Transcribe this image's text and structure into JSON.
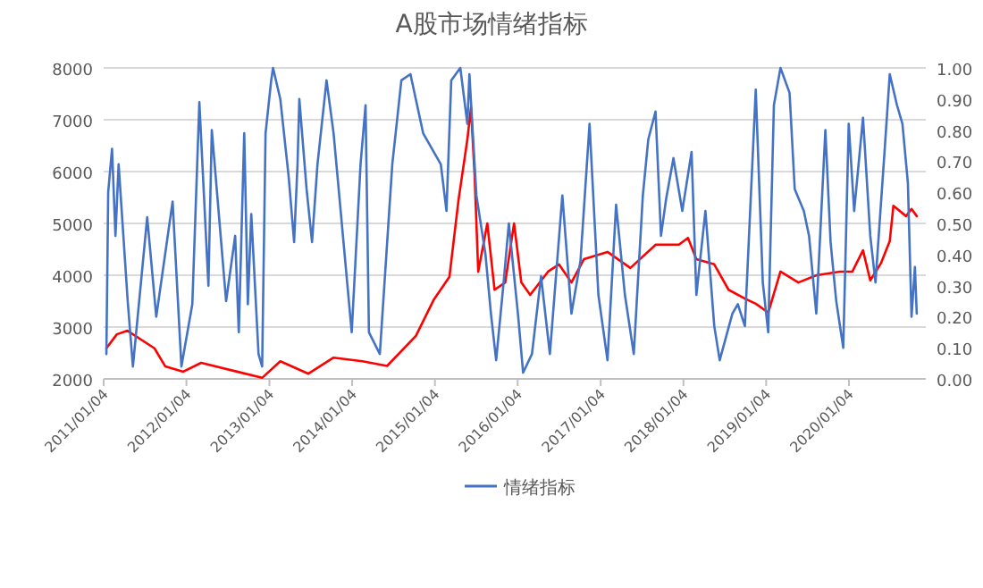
{
  "chart_data": {
    "type": "line",
    "title": "A股市场情绪指标",
    "xlim": [
      "2011-01-04",
      "2020-12-08"
    ],
    "xticks": [
      {
        "value": "2011-01-04",
        "label": "2011/01/04"
      },
      {
        "value": "2012-01-04",
        "label": "2012/01/04"
      },
      {
        "value": "2013-01-04",
        "label": "2013/01/04"
      },
      {
        "value": "2014-01-04",
        "label": "2014/01/04"
      },
      {
        "value": "2015-01-04",
        "label": "2015/01/04"
      },
      {
        "value": "2016-01-04",
        "label": "2016/01/04"
      },
      {
        "value": "2017-01-04",
        "label": "2017/01/04"
      },
      {
        "value": "2018-01-04",
        "label": "2018/01/04"
      },
      {
        "value": "2019-01-04",
        "label": "2019/01/04"
      },
      {
        "value": "2020-01-04",
        "label": "2020/01/04"
      }
    ],
    "ylim": [
      2000,
      8000
    ],
    "yticks": [
      2000,
      3000,
      4000,
      5000,
      6000,
      7000,
      8000
    ],
    "y2lim": [
      0,
      1
    ],
    "y2ticks": [
      {
        "value": 0,
        "label": "0.00"
      },
      {
        "value": 0.1,
        "label": "0.10"
      },
      {
        "value": 0.2,
        "label": "0.20"
      },
      {
        "value": 0.3,
        "label": "0.30"
      },
      {
        "value": 0.4,
        "label": "0.40"
      },
      {
        "value": 0.5,
        "label": "0.50"
      },
      {
        "value": 0.6,
        "label": "0.60"
      },
      {
        "value": 0.7,
        "label": "0.70"
      },
      {
        "value": 0.8,
        "label": "0.80"
      },
      {
        "value": 0.9,
        "label": "0.90"
      },
      {
        "value": 1,
        "label": "1.00"
      }
    ],
    "grid": "y",
    "legend": "bottom",
    "series": [
      {
        "color": "#ff0000",
        "x": [
          "2011-01-16",
          "2011-03-03",
          "2011-04-19",
          "2011-08-16",
          "2011-10-03",
          "2011-12-21",
          "2012-03-09",
          "2012-08-14",
          "2012-12-03",
          "2013-02-21",
          "2013-06-25",
          "2013-10-14",
          "2014-02-18",
          "2014-06-07",
          "2014-10-12",
          "2014-12-29",
          "2015-03-09",
          "2015-04-18",
          "2015-05-27",
          "2015-06-12",
          "2015-06-28",
          "2015-07-14",
          "2015-08-23",
          "2015-09-24",
          "2015-11-10",
          "2015-12-19",
          "2016-01-20",
          "2016-02-28",
          "2016-05-17",
          "2016-07-04",
          "2016-08-28",
          "2016-10-22",
          "2017-02-03",
          "2017-05-15",
          "2017-09-04",
          "2017-12-15",
          "2018-01-24",
          "2018-03-02",
          "2018-05-20",
          "2018-07-22",
          "2018-10-02",
          "2018-11-19",
          "2019-01-13",
          "2019-03-08",
          "2019-05-26",
          "2019-08-14",
          "2019-11-25",
          "2020-01-19",
          "2020-03-06",
          "2020-04-07",
          "2020-05-24",
          "2020-07-02",
          "2020-07-18",
          "2020-09-12",
          "2020-10-06",
          "2020-10-29"
        ],
        "values": [
          2590,
          2860,
          2930,
          2590,
          2240,
          2140,
          2310,
          2140,
          2020,
          2340,
          2100,
          2410,
          2340,
          2250,
          2830,
          3520,
          3970,
          5450,
          6620,
          7240,
          5930,
          4070,
          5000,
          3720,
          3860,
          5000,
          3860,
          3620,
          4070,
          4210,
          3860,
          4310,
          4450,
          4140,
          4590,
          4590,
          4720,
          4310,
          4210,
          3720,
          3550,
          3450,
          3280,
          4070,
          3860,
          4000,
          4070,
          4070,
          4480,
          3900,
          4230,
          4660,
          5340,
          5140,
          5280,
          5140
        ]
      },
      {
        "name": "情绪指标",
        "color": "#4472c4",
        "axis": "y2",
        "x": [
          "2011-01-16",
          "2011-01-24",
          "2011-02-10",
          "2011-02-25",
          "2011-03-11",
          "2011-04-20",
          "2011-05-13",
          "2011-07-15",
          "2011-08-24",
          "2011-11-04",
          "2011-12-13",
          "2012-01-30",
          "2012-03-01",
          "2012-04-10",
          "2012-04-25",
          "2012-06-27",
          "2012-08-06",
          "2012-08-22",
          "2012-09-15",
          "2012-10-01",
          "2012-10-16",
          "2012-11-17",
          "2012-12-03",
          "2012-12-18",
          "2013-01-12",
          "2013-01-20",
          "2013-02-21",
          "2013-03-30",
          "2013-04-23",
          "2013-05-08",
          "2013-05-16",
          "2013-06-17",
          "2013-07-11",
          "2013-08-04",
          "2013-09-13",
          "2013-10-14",
          "2014-01-02",
          "2014-02-10",
          "2014-03-04",
          "2014-03-19",
          "2014-05-06",
          "2014-06-30",
          "2014-08-09",
          "2014-09-18",
          "2014-11-13",
          "2015-01-30",
          "2015-02-24",
          "2015-03-17",
          "2015-04-26",
          "2015-05-27",
          "2015-06-05",
          "2015-07-06",
          "2015-08-15",
          "2015-09-08",
          "2015-10-01",
          "2015-11-03",
          "2015-11-26",
          "2016-01-05",
          "2016-01-28",
          "2016-03-07",
          "2016-04-16",
          "2016-05-25",
          "2016-07-19",
          "2016-08-28",
          "2016-10-07",
          "2016-11-16",
          "2016-12-25",
          "2017-02-03",
          "2017-03-13",
          "2017-04-21",
          "2017-05-30",
          "2017-07-09",
          "2017-08-02",
          "2017-09-03",
          "2017-09-27",
          "2017-10-20",
          "2017-11-21",
          "2017-12-30",
          "2018-02-09",
          "2018-03-02",
          "2018-04-11",
          "2018-05-20",
          "2018-06-13",
          "2018-08-08",
          "2018-09-01",
          "2018-10-02",
          "2018-11-19",
          "2018-12-20",
          "2019-01-13",
          "2019-02-07",
          "2019-03-08",
          "2019-04-17",
          "2019-05-10",
          "2019-06-19",
          "2019-07-12",
          "2019-08-13",
          "2019-09-22",
          "2019-10-15",
          "2019-11-09",
          "2019-12-10",
          "2020-01-03",
          "2020-01-27",
          "2020-03-06",
          "2020-04-07",
          "2020-04-30",
          "2020-06-09",
          "2020-07-02",
          "2020-08-03",
          "2020-08-27",
          "2020-09-20",
          "2020-10-06",
          "2020-10-21",
          "2020-10-29"
        ],
        "values": [
          0.08,
          0.6,
          0.74,
          0.46,
          0.69,
          0.25,
          0.04,
          0.52,
          0.2,
          0.57,
          0.04,
          0.24,
          0.89,
          0.3,
          0.8,
          0.25,
          0.46,
          0.15,
          0.79,
          0.24,
          0.53,
          0.08,
          0.04,
          0.79,
          0.96,
          1.0,
          0.9,
          0.65,
          0.44,
          0.69,
          0.9,
          0.61,
          0.44,
          0.69,
          0.96,
          0.79,
          0.15,
          0.69,
          0.88,
          0.15,
          0.08,
          0.69,
          0.96,
          0.98,
          0.79,
          0.69,
          0.54,
          0.96,
          1.0,
          0.82,
          0.98,
          0.59,
          0.4,
          0.21,
          0.06,
          0.31,
          0.5,
          0.21,
          0.02,
          0.08,
          0.33,
          0.08,
          0.59,
          0.21,
          0.38,
          0.82,
          0.27,
          0.06,
          0.56,
          0.27,
          0.08,
          0.59,
          0.77,
          0.86,
          0.46,
          0.58,
          0.71,
          0.54,
          0.73,
          0.27,
          0.54,
          0.17,
          0.06,
          0.21,
          0.24,
          0.17,
          0.93,
          0.31,
          0.15,
          0.88,
          1.0,
          0.92,
          0.61,
          0.54,
          0.46,
          0.21,
          0.8,
          0.44,
          0.25,
          0.1,
          0.82,
          0.54,
          0.84,
          0.46,
          0.31,
          0.73,
          0.98,
          0.88,
          0.82,
          0.63,
          0.2,
          0.36,
          0.21
        ]
      }
    ]
  }
}
